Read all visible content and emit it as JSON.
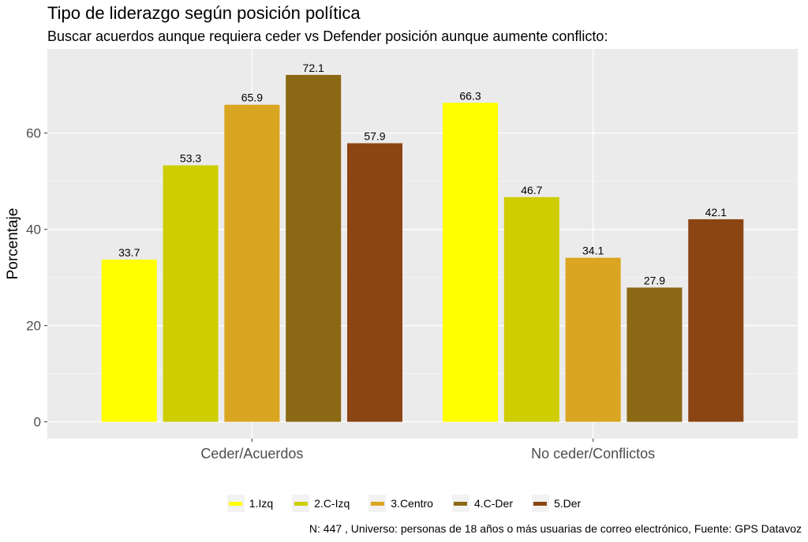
{
  "chart_data": {
    "type": "bar",
    "title": "Tipo de liderazgo según posición política",
    "subtitle": "Buscar acuerdos aunque requiera ceder vs Defender posición aunque aumente conflicto:",
    "xlabel": "",
    "ylabel": "Porcentaje",
    "ylim": [
      -3.5,
      77.5
    ],
    "yticks": [
      0,
      20,
      40,
      60
    ],
    "grid": true,
    "legend_position": "bottom",
    "categories": [
      "Ceder/Acuerdos",
      "No ceder/Conflictos"
    ],
    "series": [
      {
        "name": "1.Izq",
        "color": "#FFFF00",
        "values": [
          33.7,
          66.3
        ]
      },
      {
        "name": "2.C-Izq",
        "color": "#CDCD00",
        "values": [
          53.3,
          46.7
        ]
      },
      {
        "name": "3.Centro",
        "color": "#DAA520",
        "values": [
          65.9,
          34.1
        ]
      },
      {
        "name": "4.C-Der",
        "color": "#8B6914",
        "values": [
          72.1,
          27.9
        ]
      },
      {
        "name": "5.Der",
        "color": "#8B4513",
        "values": [
          57.9,
          42.1
        ]
      }
    ],
    "caption": "N: 447 , Universo: personas de 18 años o más usuarias de correo electrónico, Fuente: GPS Datavoz"
  }
}
